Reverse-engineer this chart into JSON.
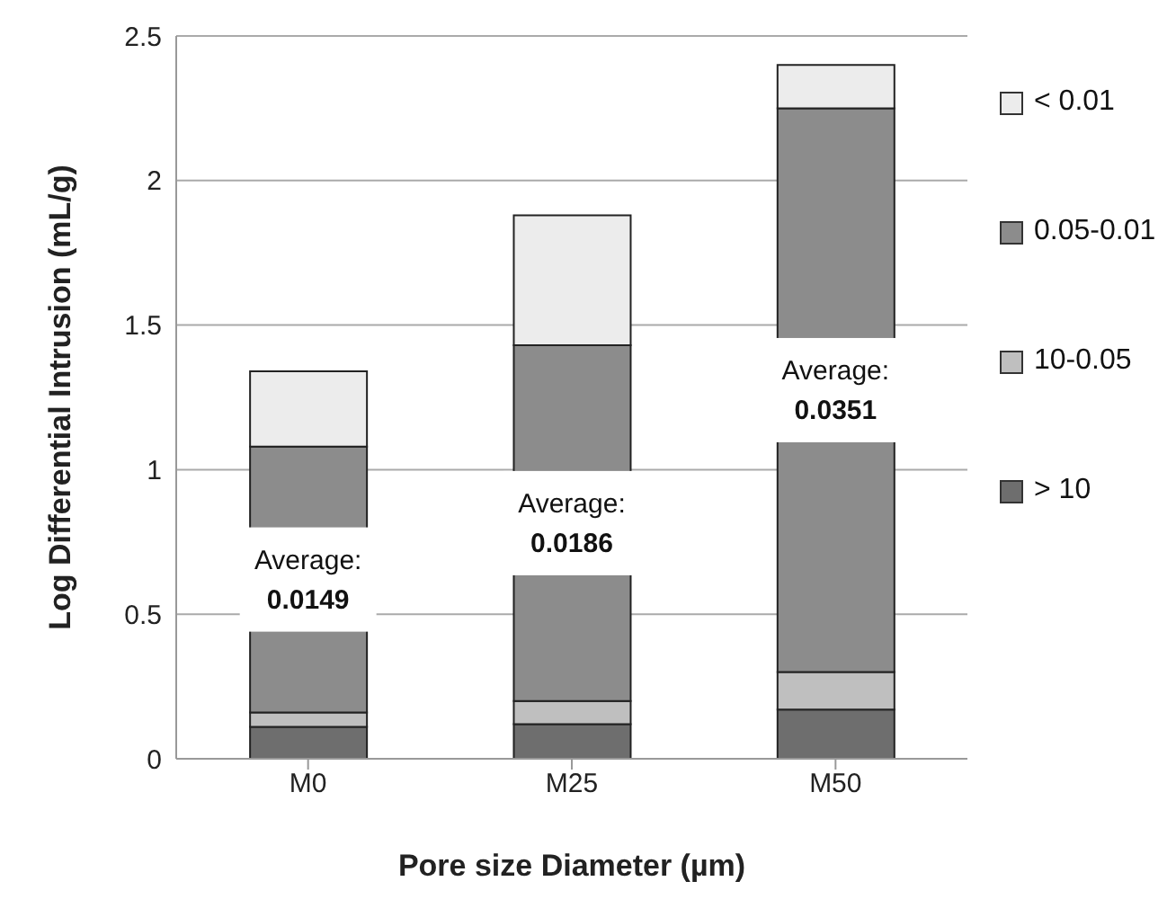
{
  "chart_data": {
    "type": "bar",
    "stacked": true,
    "xlabel": "Pore size Diameter (µm)",
    "ylabel": "Log Differential Intrusion (mL/g)",
    "categories": [
      "M0",
      "M25",
      "M50"
    ],
    "series": [
      {
        "name": "> 10",
        "color": "#6e6e6e",
        "values": [
          0.11,
          0.12,
          0.17
        ]
      },
      {
        "name": "10-0.05",
        "color": "#bfbfbf",
        "values": [
          0.05,
          0.08,
          0.13
        ]
      },
      {
        "name": "0.05-0.01",
        "color": "#8c8c8c",
        "values": [
          0.92,
          1.23,
          1.95
        ]
      },
      {
        "name": "< 0.01",
        "color": "#ececec",
        "values": [
          0.26,
          0.45,
          0.15
        ]
      }
    ],
    "ylim": [
      0,
      2.5
    ],
    "yticks": [
      0,
      0.5,
      1,
      1.5,
      2,
      2.5
    ],
    "grid": "y",
    "legend": "right",
    "annotations": [
      "Average:\n0.0149",
      "Average:\n0.0186",
      "Average:\n0.0351"
    ]
  }
}
